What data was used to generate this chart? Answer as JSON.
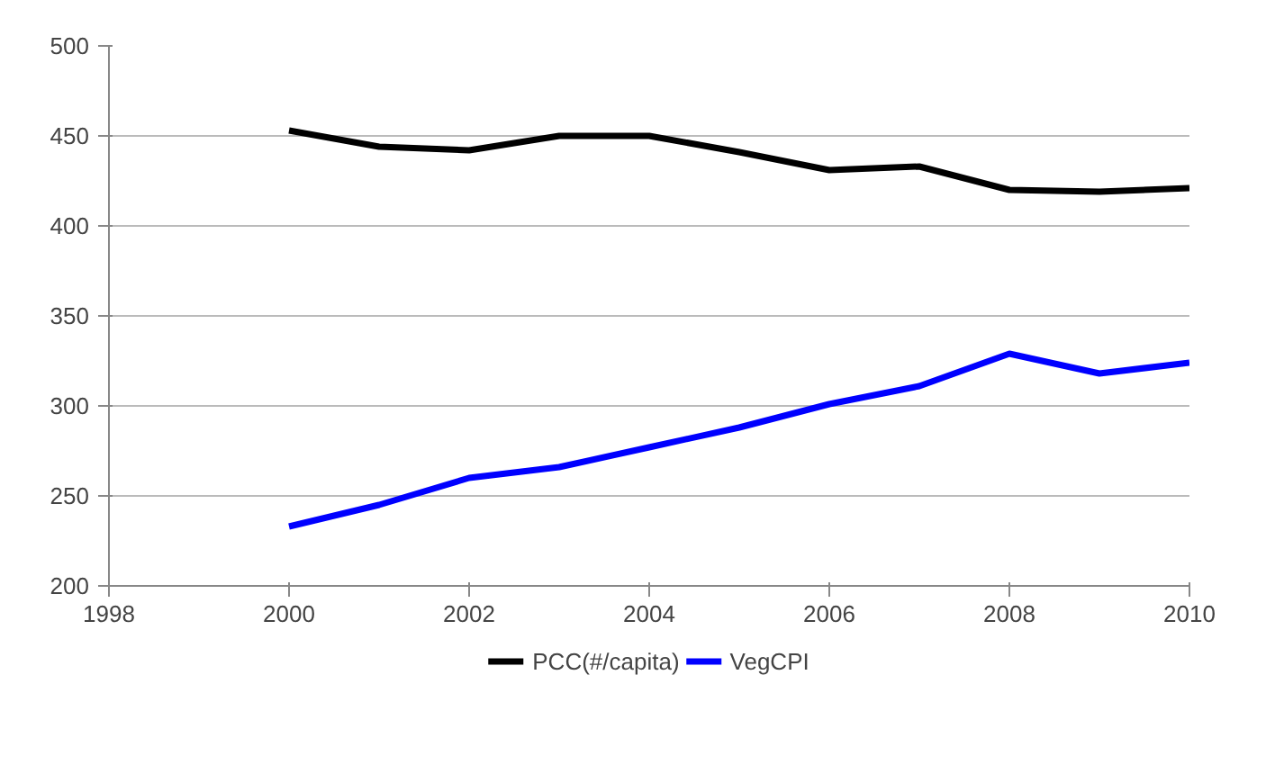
{
  "chart_data": {
    "type": "line",
    "x": [
      2000,
      2001,
      2002,
      2003,
      2004,
      2005,
      2006,
      2007,
      2008,
      2009,
      2010
    ],
    "series": [
      {
        "name": "PCC(#/capita)",
        "color": "#000000",
        "values": [
          453,
          444,
          442,
          450,
          450,
          441,
          431,
          433,
          420,
          419,
          421
        ]
      },
      {
        "name": "VegCPI",
        "color": "#0000ff",
        "values": [
          233,
          245,
          260,
          266,
          277,
          288,
          301,
          311,
          329,
          318,
          324
        ]
      }
    ],
    "xlim": [
      1998,
      2010
    ],
    "xticks": [
      1998,
      2000,
      2002,
      2004,
      2006,
      2008,
      2010
    ],
    "ylim": [
      200,
      500
    ],
    "yticks": [
      200,
      250,
      300,
      350,
      400,
      450,
      500
    ],
    "grid": "y",
    "legend": "bottom",
    "marker": "none",
    "line_style": "solid"
  }
}
